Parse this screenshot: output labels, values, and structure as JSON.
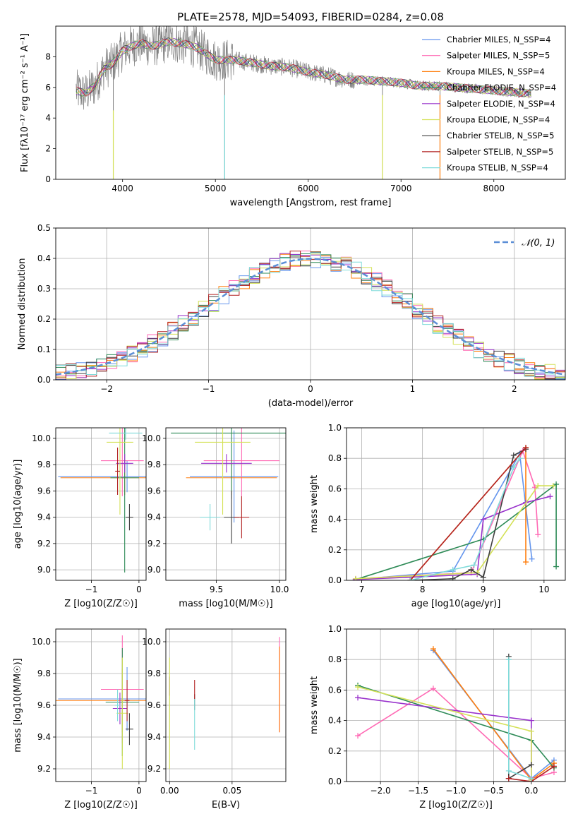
{
  "chart_data": [
    {
      "id": "spectrum",
      "type": "line",
      "title": "PLATE=2578, MJD=54093, FIBERID=0284, z=0.08",
      "xlabel": "wavelength [Angstrom, rest frame]",
      "ylabel": "Flux [fλ10⁻¹⁷ erg cm⁻² s⁻¹ A⁻¹]",
      "xlim": [
        3280,
        8770
      ],
      "ylim": [
        0,
        10
      ],
      "xticks": [
        4000,
        5000,
        6000,
        7000,
        8000
      ],
      "yticks": [
        0,
        2,
        4,
        6,
        8
      ],
      "grid": false,
      "legend_placement": "top-right",
      "data_color": "#808080",
      "model_x": [
        3500,
        3600,
        3700,
        3800,
        3900,
        4000,
        4100,
        4200,
        4300,
        4400,
        4500,
        4600,
        4700,
        4800,
        4900,
        5000,
        5200,
        5400,
        5600,
        5800,
        6000,
        6200,
        6400,
        6600,
        6800,
        7000,
        7200,
        7400,
        7600,
        7800,
        8000,
        8200,
        8400
      ],
      "model_y": [
        5.8,
        5.6,
        6.1,
        7.2,
        7.6,
        8.4,
        8.7,
        8.9,
        8.7,
        8.8,
        9.0,
        8.9,
        8.8,
        8.6,
        8.2,
        7.8,
        7.8,
        7.6,
        7.4,
        7.3,
        7.0,
        6.8,
        6.5,
        6.5,
        6.4,
        6.3,
        6.1,
        6.1,
        6.0,
        5.9,
        5.8,
        5.7,
        5.6
      ],
      "series": [
        {
          "name": "Chabrier MILES, N_SSP=4",
          "color": "#6495ed"
        },
        {
          "name": "Salpeter MILES, N_SSP=5",
          "color": "#ff69b4"
        },
        {
          "name": "Kroupa MILES, N_SSP=4",
          "color": "#ff7f0e"
        },
        {
          "name": "Chabrier ELODIE, N_SSP=4",
          "color": "#2e8b57"
        },
        {
          "name": "Salpeter ELODIE, N_SSP=4",
          "color": "#9932cc"
        },
        {
          "name": "Kroupa ELODIE, N_SSP=4",
          "color": "#d4e157"
        },
        {
          "name": "Chabrier STELIB, N_SSP=5",
          "color": "#404040"
        },
        {
          "name": "Salpeter STELIB, N_SSP=5",
          "color": "#b22222"
        },
        {
          "name": "Kroupa STELIB, N_SSP=4",
          "color": "#7fdbda"
        }
      ]
    },
    {
      "id": "residuals",
      "type": "line",
      "xlabel": "(data-model)/error",
      "ylabel": "Normed distribution",
      "xlim": [
        -2.5,
        2.5
      ],
      "ylim": [
        0,
        0.5
      ],
      "xticks": [
        -2,
        -1,
        0,
        1,
        2
      ],
      "yticks": [
        0.0,
        0.1,
        0.2,
        0.3,
        0.4,
        0.5
      ],
      "grid": true,
      "legend_placement": "top-right",
      "legend": "𝒩(0, 1)",
      "gaussian": {
        "mean": 0,
        "sigma": 1,
        "color": "#5b8ed6"
      },
      "bin_width": 0.1,
      "hist_colors": [
        "#6495ed",
        "#ff69b4",
        "#ff7f0e",
        "#2e8b57",
        "#9932cc",
        "#d4e157",
        "#404040",
        "#b22222",
        "#7fdbda"
      ]
    },
    {
      "id": "age_vs_Z",
      "type": "scatter",
      "xlabel": "Z [log10(Z/Z☉)]",
      "ylabel": "age  [log10(age/yr)]",
      "xlim": [
        -1.75,
        0.15
      ],
      "ylim": [
        8.92,
        10.08
      ],
      "xticks": [
        -1,
        0
      ],
      "yticks": [
        9.0,
        9.2,
        9.4,
        9.6,
        9.8,
        10.0
      ],
      "grid": true,
      "points": [
        {
          "color": "#6495ed",
          "x": -0.25,
          "xerr": 1.45,
          "y": 9.71,
          "yerr": 0.12
        },
        {
          "color": "#ff69b4",
          "x": -0.35,
          "xerr": 0.45,
          "y": 9.83,
          "yerr": 0.27
        },
        {
          "color": "#ff7f0e",
          "x": -0.3,
          "xerr": 1.35,
          "y": 9.7,
          "yerr": 0.13
        },
        {
          "color": "#2e8b57",
          "x": -0.3,
          "xerr": 0.3,
          "y": 9.7,
          "yerr": 0.72
        },
        {
          "color": "#9932cc",
          "x": -0.3,
          "xerr": 0.18,
          "y": 9.81,
          "yerr": 0.07
        },
        {
          "color": "#d4e157",
          "x": -0.4,
          "xerr": 0.28,
          "y": 9.97,
          "yerr": 0.55
        },
        {
          "color": "#404040",
          "x": -0.2,
          "xerr": 0.08,
          "y": 9.4,
          "yerr": 0.1
        },
        {
          "color": "#b22222",
          "x": -0.45,
          "xerr": 0.05,
          "y": 9.75,
          "yerr": 0.18
        },
        {
          "color": "#7fdbda",
          "x": -0.28,
          "xerr": 0.35,
          "y": 10.04,
          "yerr": 0.05
        }
      ]
    },
    {
      "id": "age_vs_mass",
      "type": "scatter",
      "xlabel": "mass [log10(M/M☉)]",
      "ylabel": "",
      "xlim": [
        9.1,
        10.05
      ],
      "ylim": [
        8.92,
        10.08
      ],
      "xticks": [
        9.5,
        10.0
      ],
      "yticks": [
        9.0,
        9.2,
        9.4,
        9.6,
        9.8,
        10.0
      ],
      "grid": true,
      "points": [
        {
          "color": "#6495ed",
          "x": 9.64,
          "xerr": 0.35,
          "y": 9.71,
          "yerr": 0.35
        },
        {
          "color": "#ff69b4",
          "x": 9.7,
          "xerr": 0.3,
          "y": 9.83,
          "yerr": 0.27
        },
        {
          "color": "#ff7f0e",
          "x": 9.62,
          "xerr": 0.36,
          "y": 9.7,
          "yerr": 0.13
        },
        {
          "color": "#2e8b57",
          "x": 9.62,
          "xerr": 0.48,
          "y": 10.04,
          "yerr": 0.5
        },
        {
          "color": "#9932cc",
          "x": 9.58,
          "xerr": 0.2,
          "y": 9.81,
          "yerr": 0.07
        },
        {
          "color": "#d4e157",
          "x": 9.55,
          "xerr": 0.22,
          "y": 9.97,
          "yerr": 0.55
        },
        {
          "color": "#404040",
          "x": 9.62,
          "xerr": 0.06,
          "y": 9.4,
          "yerr": 0.2
        },
        {
          "color": "#b22222",
          "x": 9.7,
          "xerr": 0.06,
          "y": 9.4,
          "yerr": 0.16
        },
        {
          "color": "#7fdbda",
          "x": 9.45,
          "xerr": 0.08,
          "y": 9.4,
          "yerr": 0.1
        }
      ]
    },
    {
      "id": "weight_vs_age",
      "type": "line",
      "xlabel": "age  [log10(age/yr)]",
      "ylabel": "mass weight",
      "xlim": [
        6.75,
        10.35
      ],
      "ylim": [
        0,
        1
      ],
      "xticks": [
        7,
        8,
        9,
        10
      ],
      "yticks": [
        0.0,
        0.2,
        0.4,
        0.6,
        0.8,
        1.0
      ],
      "grid": true,
      "series": [
        {
          "color": "#6495ed",
          "x": [
            6.9,
            8.5,
            9.6,
            9.8
          ],
          "y": [
            0.005,
            0.06,
            0.83,
            0.14
          ]
        },
        {
          "color": "#ff69b4",
          "x": [
            6.9,
            8.8,
            9.65,
            9.85,
            9.9
          ],
          "y": [
            0.01,
            0.05,
            0.85,
            0.61,
            0.3
          ]
        },
        {
          "color": "#ff7f0e",
          "x": [
            7.8,
            9.7,
            9.7
          ],
          "y": [
            0.0,
            0.87,
            0.12
          ]
        },
        {
          "color": "#2e8b57",
          "x": [
            6.9,
            9.0,
            10.2,
            10.2
          ],
          "y": [
            0.005,
            0.27,
            0.63,
            0.09
          ]
        },
        {
          "color": "#9932cc",
          "x": [
            6.9,
            8.9,
            9.0,
            9.7,
            10.1
          ],
          "y": [
            0.005,
            0.04,
            0.4,
            0.51,
            0.55
          ]
        },
        {
          "color": "#d4e157",
          "x": [
            6.9,
            8.9,
            9.9,
            10.15
          ],
          "y": [
            0.01,
            0.05,
            0.62,
            0.62
          ]
        },
        {
          "color": "#404040",
          "x": [
            7.8,
            8.5,
            8.8,
            9.0,
            9.5,
            9.7
          ],
          "y": [
            0.0,
            0.01,
            0.07,
            0.02,
            0.82,
            0.86
          ]
        },
        {
          "color": "#b22222",
          "x": [
            7.8,
            9.7
          ],
          "y": [
            0.0,
            0.87
          ]
        },
        {
          "color": "#7fdbda",
          "x": [
            7.8,
            8.5,
            8.85,
            9.5,
            9.6
          ],
          "y": [
            0.0,
            0.07,
            0.1,
            0.74,
            0.8
          ]
        }
      ]
    },
    {
      "id": "mass_vs_Z",
      "type": "scatter",
      "xlabel": "Z [log10(Z/Z☉)]",
      "ylabel": "mass [log10(M/M☉)]",
      "xlim": [
        -1.75,
        0.15
      ],
      "ylim": [
        9.12,
        10.08
      ],
      "xticks": [
        -1,
        0
      ],
      "yticks": [
        9.2,
        9.4,
        9.6,
        9.8,
        10.0
      ],
      "grid": true,
      "points": [
        {
          "color": "#6495ed",
          "x": -0.25,
          "xerr": 1.45,
          "y": 9.64,
          "yerr": 0.2
        },
        {
          "color": "#ff69b4",
          "x": -0.35,
          "xerr": 0.45,
          "y": 9.7,
          "yerr": 0.34
        },
        {
          "color": "#ff7f0e",
          "x": -0.35,
          "xerr": 1.4,
          "y": 9.63,
          "yerr": 0.2
        },
        {
          "color": "#2e8b57",
          "x": -0.35,
          "xerr": 0.35,
          "y": 9.62,
          "yerr": 0.34
        },
        {
          "color": "#9932cc",
          "x": -0.4,
          "xerr": 0.15,
          "y": 9.58,
          "yerr": 0.1
        },
        {
          "color": "#d4e157",
          "x": -0.35,
          "xerr": 0.12,
          "y": 9.55,
          "yerr": 0.35
        },
        {
          "color": "#404040",
          "x": -0.2,
          "xerr": 0.08,
          "y": 9.45,
          "yerr": 0.1
        },
        {
          "color": "#b22222",
          "x": -0.25,
          "xerr": 0.05,
          "y": 9.63,
          "yerr": 0.13
        },
        {
          "color": "#7fdbda",
          "x": -0.45,
          "xerr": 0.06,
          "y": 9.6,
          "yerr": 0.1
        }
      ]
    },
    {
      "id": "mass_vs_ebv",
      "type": "scatter",
      "xlabel": "E(B-V)",
      "ylabel": "",
      "xlim": [
        -0.003,
        0.093
      ],
      "ylim": [
        9.12,
        10.08
      ],
      "xticks": [
        0.0,
        0.05
      ],
      "yticks": [
        9.2,
        9.4,
        9.6,
        9.8,
        10.0
      ],
      "grid": true,
      "points": [
        {
          "color": "#9932cc",
          "x": 0.0,
          "y": 9.72,
          "yerr": 0.06
        },
        {
          "color": "#d4e157",
          "x": 0.0,
          "y": 9.55,
          "yerr": 0.35
        },
        {
          "color": "#404040",
          "x": 0.02,
          "y": 9.62,
          "yerr": 0.05
        },
        {
          "color": "#b22222",
          "x": 0.02,
          "y": 9.7,
          "yerr": 0.06
        },
        {
          "color": "#7fdbda",
          "x": 0.02,
          "y": 9.48,
          "yerr": 0.16
        },
        {
          "color": "#ff69b4",
          "x": 0.088,
          "y": 9.73,
          "yerr": 0.3
        },
        {
          "color": "#ff7f0e",
          "x": 0.088,
          "y": 9.7,
          "yerr": 0.27
        }
      ]
    },
    {
      "id": "weight_vs_Z",
      "type": "line",
      "xlabel": "Z [log10(Z/Z☉)]",
      "ylabel": "mass weight",
      "xlim": [
        -2.45,
        0.45
      ],
      "ylim": [
        0,
        1
      ],
      "xticks": [
        -2.0,
        -1.5,
        -1.0,
        -0.5,
        0.0
      ],
      "yticks": [
        0.0,
        0.2,
        0.4,
        0.6,
        0.8,
        1.0
      ],
      "grid": true,
      "series": [
        {
          "color": "#6495ed",
          "x": [
            -1.3,
            0.0,
            0.3
          ],
          "y": [
            0.86,
            0.02,
            0.14
          ]
        },
        {
          "color": "#ff69b4",
          "x": [
            -2.3,
            -1.3,
            0.0,
            0.3
          ],
          "y": [
            0.3,
            0.61,
            0.02,
            0.06
          ]
        },
        {
          "color": "#ff7f0e",
          "x": [
            -1.3,
            0.0,
            0.3
          ],
          "y": [
            0.87,
            0.01,
            0.12
          ]
        },
        {
          "color": "#2e8b57",
          "x": [
            -2.3,
            0.0,
            0.3
          ],
          "y": [
            0.63,
            0.27,
            0.09
          ]
        },
        {
          "color": "#9932cc",
          "x": [
            -2.3,
            0.0,
            0.0
          ],
          "y": [
            0.55,
            0.4,
            0.01
          ]
        },
        {
          "color": "#d4e157",
          "x": [
            -2.3,
            0.0,
            0.0
          ],
          "y": [
            0.62,
            0.33,
            0.01
          ]
        },
        {
          "color": "#404040",
          "x": [
            -0.3,
            -0.3,
            0.0
          ],
          "y": [
            0.82,
            0.02,
            0.11
          ]
        },
        {
          "color": "#b22222",
          "x": [
            -0.3,
            0.0,
            0.3
          ],
          "y": [
            0.02,
            0.0,
            0.1
          ]
        },
        {
          "color": "#7fdbda",
          "x": [
            -0.3,
            -0.3,
            0.0
          ],
          "y": [
            0.8,
            0.07,
            0.02
          ]
        }
      ]
    }
  ]
}
